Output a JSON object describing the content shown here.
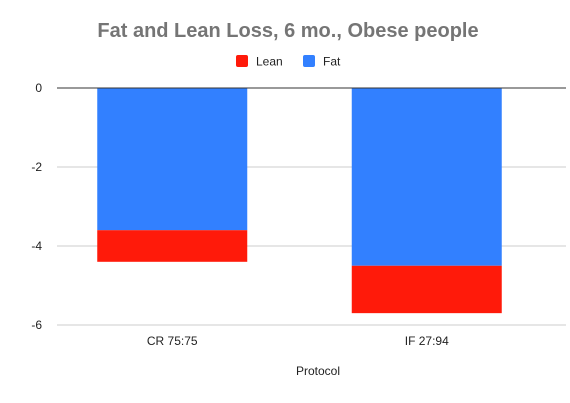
{
  "chart_data": {
    "type": "bar",
    "stacked": true,
    "title": "Fat and Lean Loss, 6 mo., Obese people",
    "xlabel": "Protocol",
    "ylabel": "",
    "categories": [
      "CR 75:75",
      "IF 27:94"
    ],
    "series": [
      {
        "name": "Lean",
        "color": "#ff1a0a",
        "values": [
          -0.8,
          -1.2
        ]
      },
      {
        "name": "Fat",
        "color": "#3280ff",
        "values": [
          -3.6,
          -4.5
        ]
      }
    ],
    "ylim": [
      -6,
      0
    ],
    "yticks": [
      0,
      -2,
      -4,
      -6
    ],
    "ytick_labels": [
      "0",
      "-2",
      "-4",
      "-6"
    ],
    "legend_position": "top",
    "grid": true
  }
}
